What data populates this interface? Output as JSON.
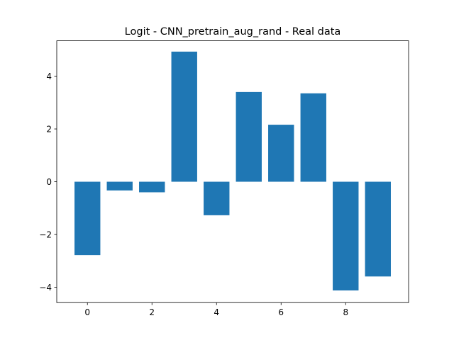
{
  "chart_data": {
    "type": "bar",
    "title": "Logit - CNN_pretrain_aug_rand - Real data",
    "xlabel": "",
    "ylabel": "",
    "categories": [
      0,
      1,
      2,
      3,
      4,
      5,
      6,
      7,
      8,
      9
    ],
    "values": [
      -2.78,
      -0.33,
      -0.4,
      4.93,
      -1.27,
      3.4,
      2.16,
      3.35,
      -4.12,
      -3.59
    ],
    "xlim": [
      -0.95,
      9.95
    ],
    "ylim": [
      -4.58,
      5.34
    ],
    "xticks": [
      0,
      2,
      4,
      6,
      8
    ],
    "yticks": [
      -4,
      -2,
      0,
      2,
      4
    ],
    "xtick_labels": [
      "0",
      "2",
      "4",
      "6",
      "8"
    ],
    "ytick_labels": [
      "−4",
      "−2",
      "0",
      "2",
      "4"
    ],
    "bar_color": "#1f77b4",
    "grid": false,
    "legend": false
  }
}
